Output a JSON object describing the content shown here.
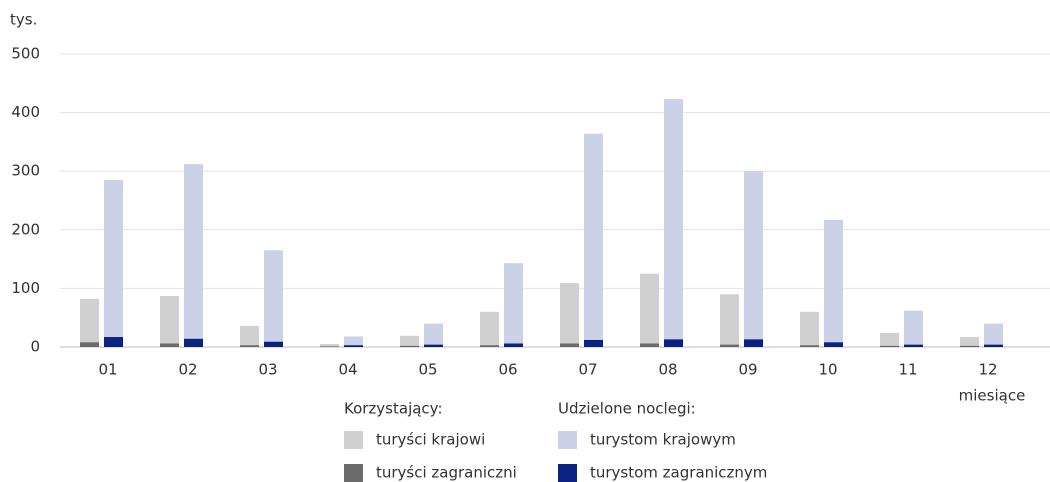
{
  "chart_data": {
    "type": "bar",
    "y_label": "tys.",
    "x_label": "miesiące",
    "legend_titles": [
      "Korzystający:",
      "Udzielone noclegi:"
    ],
    "categories": [
      "01",
      "02",
      "03",
      "04",
      "05",
      "06",
      "07",
      "08",
      "09",
      "10",
      "11",
      "12"
    ],
    "series": [
      {
        "name": "turyści krajowi",
        "color": "#d0d0d0",
        "values": [
          82,
          87,
          36,
          5,
          19,
          60,
          109,
          125,
          90,
          60,
          24,
          17
        ]
      },
      {
        "name": "turyści zagraniczni",
        "color": "#6b6b6b",
        "values": [
          8,
          6,
          3,
          1,
          2,
          3,
          6,
          6,
          4,
          3,
          2,
          2
        ]
      },
      {
        "name": "turystom krajowym",
        "color": "#cbd1e6",
        "values": [
          285,
          312,
          165,
          18,
          40,
          143,
          364,
          423,
          300,
          217,
          62,
          40
        ]
      },
      {
        "name": "turystom zagranicznym",
        "color": "#0b2380",
        "values": [
          17,
          14,
          9,
          3,
          4,
          6,
          12,
          13,
          13,
          8,
          4,
          4
        ]
      }
    ],
    "ylim": [
      0,
      500
    ],
    "yticks": [
      0,
      100,
      200,
      300,
      400,
      500
    ],
    "grid": true
  }
}
